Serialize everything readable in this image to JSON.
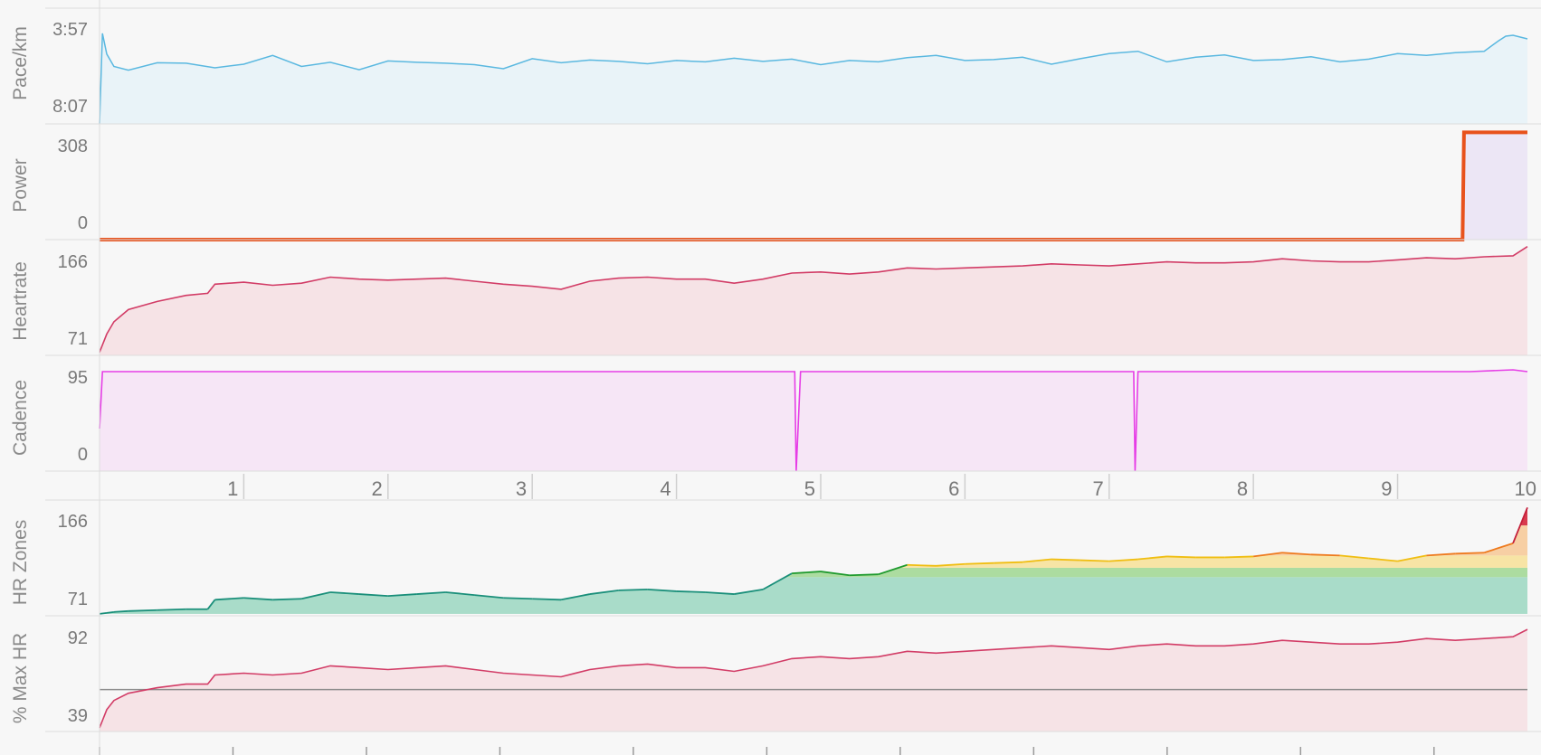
{
  "colors": {
    "background": "#f7f7f7",
    "divider": "#dcdcdc",
    "pace": "#5ab8e0",
    "pace_fill": "#e9f3f8",
    "power_line": "#e8521c",
    "power_edge": "#8a4fc7",
    "power_fill": "#ece6f5",
    "heartrate": "#d23c66",
    "heartrate_fill": "#f6e3e6",
    "cadence": "#e63de6",
    "cadence_fill": "#f6e6f6",
    "zone_blue": "#a9dcc9",
    "zone_green": "#acdca0",
    "zone_yellow": "#f7e4a5",
    "zone_orange": "#f7cfa4",
    "zone_red": "#d83a4e",
    "maxhr": "#d23c66",
    "maxhr_fill": "#f6e3e6",
    "maxhr_reference": "#8c8c8c"
  },
  "chart_data": [
    {
      "type": "line",
      "ylabel": "Pace/km",
      "ytick_labels": [
        "3:57",
        "8:07"
      ],
      "x": [
        0.0,
        0.02,
        0.05,
        0.1,
        0.2,
        0.4,
        0.6,
        0.8,
        1.0,
        1.2,
        1.4,
        1.6,
        1.8,
        2.0,
        2.2,
        2.4,
        2.6,
        2.8,
        3.0,
        3.2,
        3.4,
        3.6,
        3.8,
        4.0,
        4.2,
        4.4,
        4.6,
        4.8,
        5.0,
        5.2,
        5.4,
        5.6,
        5.8,
        6.0,
        6.2,
        6.4,
        6.6,
        6.8,
        7.0,
        7.2,
        7.4,
        7.6,
        7.8,
        8.0,
        8.2,
        8.4,
        8.6,
        8.8,
        9.0,
        9.2,
        9.4,
        9.6,
        9.7,
        9.75,
        9.8,
        9.9
      ],
      "y_seconds_per_km": [
        487,
        290,
        335,
        362,
        370,
        354,
        355,
        365,
        357,
        338,
        362,
        353,
        369,
        350,
        353,
        355,
        358,
        367,
        345,
        354,
        348,
        351,
        356,
        349,
        352,
        344,
        351,
        346,
        358,
        349,
        352,
        343,
        338,
        349,
        347,
        342,
        357,
        345,
        334,
        329,
        352,
        342,
        337,
        349,
        347,
        341,
        352,
        346,
        334,
        338,
        332,
        329,
        306,
        296,
        294,
        302
      ],
      "ylim": [
        237,
        487
      ]
    },
    {
      "type": "line",
      "ylabel": "Power",
      "ytick_labels": [
        "308",
        "0"
      ],
      "x": [
        0.0,
        9.45,
        9.46,
        9.9
      ],
      "y": [
        -72,
        -72,
        308,
        308
      ],
      "ylim": [
        -72,
        335
      ]
    },
    {
      "type": "line",
      "ylabel": "Heartrate",
      "ytick_labels": [
        "166",
        "71"
      ],
      "x": [
        0.0,
        0.05,
        0.1,
        0.2,
        0.4,
        0.6,
        0.75,
        0.8,
        1.0,
        1.2,
        1.4,
        1.6,
        1.8,
        2.0,
        2.2,
        2.4,
        2.6,
        2.8,
        3.0,
        3.2,
        3.4,
        3.6,
        3.8,
        4.0,
        4.2,
        4.4,
        4.6,
        4.8,
        5.0,
        5.2,
        5.4,
        5.6,
        5.8,
        6.0,
        6.2,
        6.4,
        6.6,
        6.8,
        7.0,
        7.2,
        7.4,
        7.6,
        7.8,
        8.0,
        8.2,
        8.4,
        8.6,
        8.8,
        9.0,
        9.2,
        9.4,
        9.6,
        9.8,
        9.9
      ],
      "y": [
        68,
        86,
        98,
        110,
        118,
        124,
        126,
        135,
        137,
        134,
        136,
        142,
        140,
        139,
        140,
        141,
        138,
        135,
        133,
        130,
        138,
        141,
        142,
        140,
        140,
        136,
        140,
        146,
        147,
        145,
        147,
        151,
        150,
        151,
        152,
        153,
        155,
        154,
        153,
        155,
        157,
        156,
        156,
        157,
        160,
        158,
        157,
        157,
        159,
        161,
        160,
        162,
        163,
        172
      ],
      "ylim": [
        65,
        178
      ]
    },
    {
      "type": "line",
      "ylabel": "Cadence",
      "ytick_labels": [
        "95",
        "0"
      ],
      "x": [
        0.0,
        0.02,
        0.5,
        1.0,
        1.5,
        2.0,
        2.5,
        3.0,
        3.5,
        4.0,
        4.5,
        4.82,
        4.83,
        4.86,
        5.0,
        5.5,
        6.0,
        6.5,
        7.0,
        7.17,
        7.18,
        7.2,
        7.5,
        8.0,
        8.5,
        9.0,
        9.5,
        9.8,
        9.9
      ],
      "y": [
        30,
        93,
        93,
        93,
        93,
        93,
        93,
        93,
        93,
        93,
        93,
        93,
        -17,
        93,
        93,
        93,
        93,
        93,
        93,
        93,
        -17,
        93,
        93,
        93,
        93,
        93,
        93,
        95,
        93
      ],
      "ylim": [
        -17,
        110
      ]
    },
    {
      "type": "area",
      "ylabel": "HR Zones",
      "ytick_labels": [
        "166",
        "71"
      ],
      "zone_bands": [
        {
          "from": 65,
          "to": 104,
          "color": "#a9dcc9"
        },
        {
          "from": 104,
          "to": 114,
          "color": "#acdca0"
        },
        {
          "from": 114,
          "to": 127,
          "color": "#f7e4a5"
        },
        {
          "from": 127,
          "to": 159,
          "color": "#f7cfa4"
        },
        {
          "from": 159,
          "to": 185,
          "color": "#d83a4e"
        }
      ],
      "x": [
        0.0,
        0.05,
        0.1,
        0.2,
        0.4,
        0.6,
        0.75,
        0.8,
        1.0,
        1.2,
        1.4,
        1.6,
        1.8,
        2.0,
        2.2,
        2.4,
        2.6,
        2.8,
        3.0,
        3.2,
        3.4,
        3.6,
        3.8,
        4.0,
        4.2,
        4.4,
        4.6,
        4.8,
        5.0,
        5.2,
        5.4,
        5.6,
        5.8,
        6.0,
        6.2,
        6.4,
        6.6,
        6.8,
        7.0,
        7.2,
        7.4,
        7.6,
        7.8,
        8.0,
        8.2,
        8.4,
        8.6,
        8.8,
        9.0,
        9.2,
        9.4,
        9.6,
        9.8,
        9.9
      ],
      "y": [
        65,
        66,
        67,
        68,
        69,
        70,
        70,
        80,
        82,
        80,
        81,
        88,
        86,
        84,
        86,
        88,
        85,
        82,
        81,
        80,
        86,
        90,
        91,
        89,
        88,
        86,
        91,
        108,
        110,
        106,
        107,
        117,
        116,
        118,
        119,
        120,
        123,
        122,
        121,
        123,
        126,
        125,
        125,
        126,
        130,
        128,
        127,
        124,
        121,
        127,
        129,
        130,
        140,
        178
      ],
      "ylim": [
        63,
        185
      ]
    },
    {
      "type": "line",
      "ylabel": "% Max HR",
      "ytick_labels": [
        "92",
        "39"
      ],
      "reference_y": 58,
      "x": [
        0.0,
        0.05,
        0.1,
        0.2,
        0.4,
        0.6,
        0.75,
        0.8,
        1.0,
        1.2,
        1.4,
        1.6,
        1.8,
        2.0,
        2.2,
        2.4,
        2.6,
        2.8,
        3.0,
        3.2,
        3.4,
        3.6,
        3.8,
        4.0,
        4.2,
        4.4,
        4.6,
        4.8,
        5.0,
        5.2,
        5.4,
        5.6,
        5.8,
        6.0,
        6.2,
        6.4,
        6.6,
        6.8,
        7.0,
        7.2,
        7.4,
        7.6,
        7.8,
        8.0,
        8.2,
        8.4,
        8.6,
        8.8,
        9.0,
        9.2,
        9.4,
        9.6,
        9.8,
        9.9
      ],
      "y": [
        37,
        47,
        52,
        56,
        59,
        61,
        61,
        66,
        67,
        66,
        67,
        71,
        70,
        69,
        70,
        71,
        69,
        67,
        66,
        65,
        69,
        71,
        72,
        70,
        70,
        68,
        71,
        75,
        76,
        75,
        76,
        79,
        78,
        79,
        80,
        81,
        82,
        81,
        80,
        82,
        83,
        82,
        82,
        83,
        85,
        84,
        83,
        83,
        84,
        86,
        85,
        86,
        87,
        91
      ],
      "ylim": [
        35,
        98
      ]
    }
  ],
  "distance_axis": {
    "ticks": [
      1,
      2,
      3,
      4,
      5,
      6,
      7,
      8,
      9,
      10
    ],
    "labels": [
      "1",
      "2",
      "3",
      "4",
      "5",
      "6",
      "7",
      "8",
      "9",
      "10"
    ],
    "xlim": [
      0,
      9.9
    ]
  },
  "bottom_axis": {
    "ticks": [
      1,
      2,
      3,
      4,
      5,
      6,
      7,
      8,
      9,
      10
    ]
  }
}
